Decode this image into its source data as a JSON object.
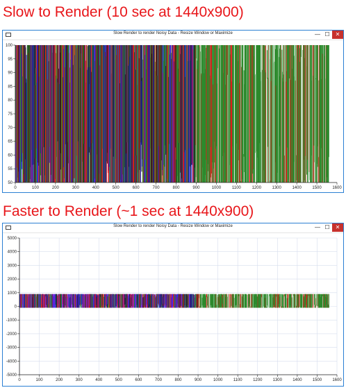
{
  "headings": {
    "slow": "Slow to Render (10 sec at 1440x900)",
    "fast": "Faster to Render (~1 sec at 1440x900)"
  },
  "windows": [
    {
      "title": "Slow Render to render Noisy Data - Resize Window or Maximize",
      "controls": {
        "minimize": "—",
        "maximize": "☐",
        "close": "✕"
      },
      "chart_data": {
        "type": "line",
        "title": "",
        "xlabel": "",
        "ylabel": "",
        "xlim": [
          0,
          1600
        ],
        "ylim": [
          50,
          100
        ],
        "x_ticks": [
          0,
          100,
          200,
          300,
          400,
          500,
          600,
          700,
          800,
          900,
          1000,
          1100,
          1200,
          1300,
          1400,
          1500,
          1600
        ],
        "y_ticks": [
          50,
          55,
          60,
          65,
          70,
          75,
          80,
          85,
          90,
          95,
          100
        ],
        "grid": false,
        "legend": "none",
        "series_colors": [
          "#2d8a2d",
          "#e01b1b",
          "#1c1c1c",
          "#2121e0"
        ],
        "noise_band": [
          50,
          100
        ],
        "x_extent": [
          0,
          1560
        ]
      }
    },
    {
      "title": "Slow Render to render Noisy Data - Resize Window or Maximize",
      "controls": {
        "minimize": "—",
        "maximize": "☐",
        "close": "✕"
      },
      "chart_data": {
        "type": "line",
        "title": "",
        "xlabel": "",
        "ylabel": "",
        "xlim": [
          0,
          1600
        ],
        "ylim": [
          -5000,
          5000
        ],
        "x_ticks": [
          0,
          100,
          200,
          300,
          400,
          500,
          600,
          700,
          800,
          900,
          1000,
          1100,
          1200,
          1300,
          1400,
          1500,
          1600
        ],
        "y_ticks": [
          -5000,
          -4000,
          -3000,
          -2000,
          -1000,
          0,
          1000,
          2000,
          3000,
          4000,
          5000
        ],
        "grid": true,
        "legend": "none",
        "series_colors": [
          "#2d8a2d",
          "#e01b1b",
          "#1c1c1c",
          "#2121e0",
          "#8a2be2"
        ],
        "noise_band": [
          -100,
          900
        ],
        "x_extent": [
          0,
          1560
        ]
      }
    }
  ]
}
